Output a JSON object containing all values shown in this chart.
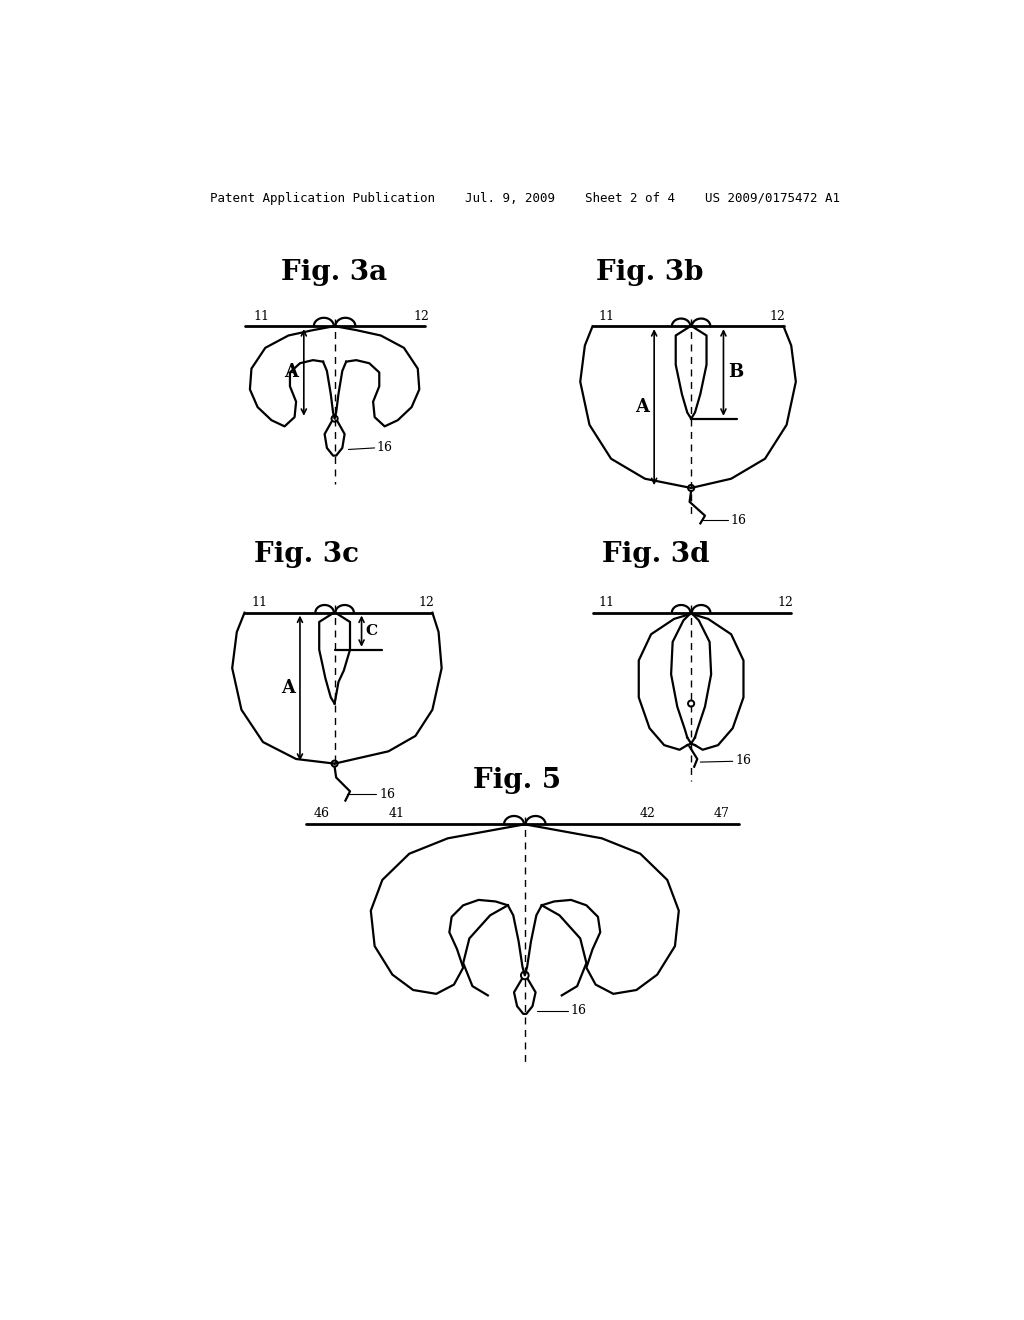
{
  "header": "Patent Application Publication    Jul. 9, 2009    Sheet 2 of 4    US 2009/0175472 A1",
  "fig3a_title": "Fig. 3a",
  "fig3b_title": "Fig. 3b",
  "fig3c_title": "Fig. 3c",
  "fig3d_title": "Fig. 3d",
  "fig5_title": "Fig. 5",
  "lw": 1.6,
  "lw_thick": 2.0,
  "lw_thin": 0.8
}
